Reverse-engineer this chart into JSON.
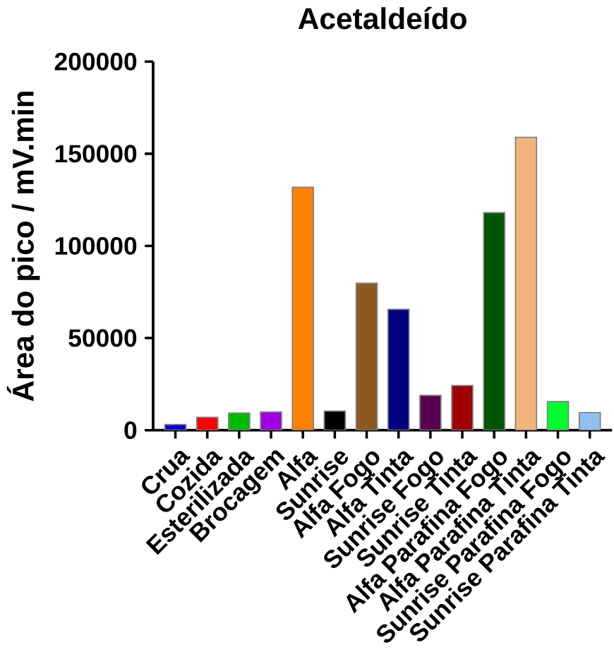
{
  "chart_data": {
    "type": "bar",
    "title": "Acetaldeído",
    "ylabel": "Área do pico / mV.min",
    "categories": [
      "Crua",
      "Cozida",
      "Esterilizada",
      "Brocagem",
      "Alfa",
      "Sunrise",
      "Alfa Fogo",
      "Alfa Tinta",
      "Sunrise Fogo",
      "Sunrise Tinta",
      "Alfa Parafina Fogo",
      "Alfa Parafina Tinta",
      "Sunrise Parafina Fogo",
      "Sunrise Parafina Tinta"
    ],
    "values": [
      3100,
      7000,
      9300,
      9900,
      131800,
      10400,
      79700,
      65600,
      18900,
      24200,
      118000,
      158900,
      15500,
      9600
    ],
    "colors": [
      "#0000cc",
      "#ff0000",
      "#00bb00",
      "#a000e0",
      "#ff8000",
      "#000000",
      "#8b5a1e",
      "#000080",
      "#5a0050",
      "#a00000",
      "#005500",
      "#f0b47c",
      "#00ff30",
      "#90c0f0"
    ],
    "ylim": [
      0,
      200000
    ],
    "yticks": [
      0,
      50000,
      100000,
      150000,
      200000
    ],
    "grid": false
  }
}
